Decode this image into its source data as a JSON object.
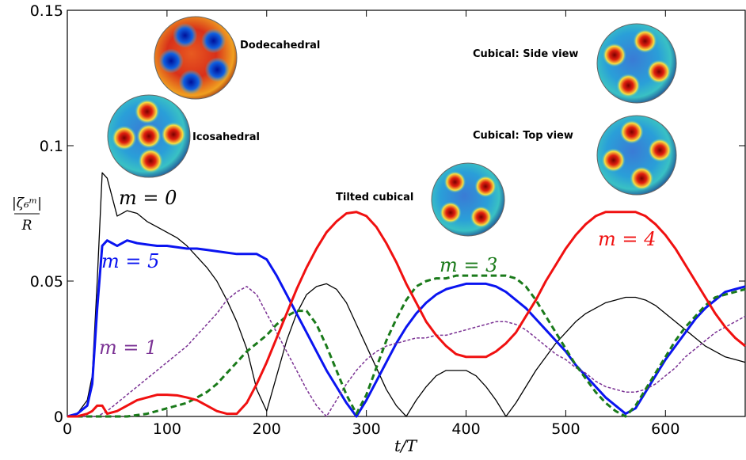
{
  "chart_data": {
    "type": "line",
    "xlabel": "t/T",
    "ylabel_numerator": "|ζ₆ᵐ|",
    "ylabel_denominator": "R",
    "xlim": [
      0,
      680
    ],
    "ylim": [
      0,
      0.15
    ],
    "xticks": [
      0,
      100,
      200,
      300,
      400,
      500,
      600
    ],
    "yticks": [
      0,
      0.05,
      0.1,
      0.15
    ],
    "annotations": [
      "Dodecahedral",
      "Icosahedral",
      "Tilted cubical",
      "Cubical: Side view",
      "Cubical: Top view"
    ],
    "x": [
      0,
      10,
      20,
      25,
      30,
      35,
      40,
      50,
      60,
      70,
      80,
      90,
      100,
      110,
      120,
      130,
      140,
      150,
      160,
      170,
      180,
      190,
      200,
      210,
      220,
      230,
      240,
      250,
      260,
      270,
      280,
      290,
      300,
      310,
      320,
      330,
      340,
      350,
      360,
      370,
      380,
      390,
      400,
      410,
      420,
      430,
      440,
      450,
      460,
      470,
      480,
      490,
      500,
      510,
      520,
      530,
      540,
      550,
      560,
      570,
      580,
      590,
      600,
      610,
      620,
      630,
      640,
      650,
      660,
      670,
      680
    ],
    "series": [
      {
        "name": "m = 0",
        "color": "#000000",
        "linewidth": 1.3,
        "dashed": false,
        "values": [
          0,
          0.001,
          0.006,
          0.015,
          0.05,
          0.09,
          0.088,
          0.074,
          0.076,
          0.075,
          0.072,
          0.07,
          0.068,
          0.066,
          0.063,
          0.059,
          0.055,
          0.05,
          0.043,
          0.035,
          0.025,
          0.01,
          0.002,
          0.015,
          0.028,
          0.038,
          0.045,
          0.048,
          0.049,
          0.047,
          0.042,
          0.034,
          0.026,
          0.018,
          0.01,
          0.004,
          0,
          0.006,
          0.011,
          0.015,
          0.017,
          0.017,
          0.017,
          0.015,
          0.011,
          0.006,
          0,
          0.005,
          0.011,
          0.017,
          0.022,
          0.027,
          0.031,
          0.035,
          0.038,
          0.04,
          0.042,
          0.043,
          0.044,
          0.044,
          0.043,
          0.041,
          0.038,
          0.035,
          0.032,
          0.029,
          0.026,
          0.024,
          0.022,
          0.021,
          0.02
        ]
      },
      {
        "name": "m = 5",
        "color": "#0a14f0",
        "linewidth": 3,
        "dashed": false,
        "values": [
          0,
          0.001,
          0.004,
          0.012,
          0.04,
          0.063,
          0.065,
          0.063,
          0.065,
          0.064,
          0.0635,
          0.063,
          0.063,
          0.0625,
          0.062,
          0.062,
          0.0615,
          0.061,
          0.0605,
          0.06,
          0.06,
          0.06,
          0.058,
          0.052,
          0.045,
          0.038,
          0.031,
          0.024,
          0.017,
          0.011,
          0.005,
          0,
          0.006,
          0.013,
          0.02,
          0.027,
          0.033,
          0.038,
          0.042,
          0.045,
          0.047,
          0.048,
          0.049,
          0.049,
          0.049,
          0.048,
          0.046,
          0.043,
          0.04,
          0.036,
          0.032,
          0.028,
          0.024,
          0.019,
          0.015,
          0.011,
          0.007,
          0.004,
          0.001,
          0.003,
          0.009,
          0.015,
          0.021,
          0.026,
          0.031,
          0.036,
          0.04,
          0.043,
          0.046,
          0.047,
          0.048
        ]
      },
      {
        "name": "m = 1",
        "color": "#7b3294",
        "linewidth": 1.5,
        "dashed": true,
        "values": [
          0,
          0,
          0,
          0,
          0,
          0.001,
          0.002,
          0.005,
          0.008,
          0.011,
          0.014,
          0.017,
          0.02,
          0.023,
          0.026,
          0.03,
          0.034,
          0.038,
          0.043,
          0.046,
          0.048,
          0.045,
          0.038,
          0.031,
          0.024,
          0.017,
          0.01,
          0.004,
          0,
          0.006,
          0.012,
          0.017,
          0.021,
          0.024,
          0.026,
          0.027,
          0.028,
          0.029,
          0.029,
          0.03,
          0.03,
          0.031,
          0.032,
          0.033,
          0.034,
          0.035,
          0.035,
          0.034,
          0.032,
          0.029,
          0.026,
          0.023,
          0.021,
          0.018,
          0.016,
          0.013,
          0.011,
          0.01,
          0.009,
          0.009,
          0.01,
          0.012,
          0.015,
          0.018,
          0.022,
          0.025,
          0.028,
          0.031,
          0.033,
          0.035,
          0.037
        ]
      },
      {
        "name": "m = 3",
        "color": "#1a7a1a",
        "linewidth": 3,
        "dashed": true,
        "values": [
          0,
          0,
          0,
          0,
          0,
          0,
          0,
          0,
          0,
          0.0005,
          0.001,
          0.002,
          0.003,
          0.004,
          0.005,
          0.007,
          0.009,
          0.012,
          0.016,
          0.02,
          0.024,
          0.027,
          0.03,
          0.034,
          0.037,
          0.039,
          0.039,
          0.034,
          0.026,
          0.017,
          0.008,
          0.001,
          0.008,
          0.018,
          0.028,
          0.036,
          0.043,
          0.048,
          0.05,
          0.051,
          0.051,
          0.052,
          0.052,
          0.052,
          0.052,
          0.052,
          0.052,
          0.051,
          0.048,
          0.043,
          0.037,
          0.031,
          0.025,
          0.019,
          0.014,
          0.009,
          0.005,
          0.002,
          0,
          0.004,
          0.01,
          0.016,
          0.022,
          0.028,
          0.033,
          0.037,
          0.041,
          0.044,
          0.045,
          0.046,
          0.047
        ]
      },
      {
        "name": "m = 4",
        "color": "#f01010",
        "linewidth": 3,
        "dashed": false,
        "values": [
          0,
          0,
          0.001,
          0.002,
          0.004,
          0.004,
          0.001,
          0.002,
          0.004,
          0.006,
          0.007,
          0.008,
          0.008,
          0.0078,
          0.007,
          0.006,
          0.004,
          0.002,
          0.001,
          0.001,
          0.005,
          0.012,
          0.02,
          0.029,
          0.038,
          0.047,
          0.055,
          0.062,
          0.068,
          0.072,
          0.075,
          0.0755,
          0.074,
          0.07,
          0.064,
          0.057,
          0.049,
          0.042,
          0.035,
          0.03,
          0.026,
          0.023,
          0.022,
          0.022,
          0.022,
          0.024,
          0.027,
          0.031,
          0.037,
          0.043,
          0.05,
          0.056,
          0.062,
          0.067,
          0.071,
          0.074,
          0.0755,
          0.0755,
          0.0755,
          0.0755,
          0.074,
          0.071,
          0.067,
          0.062,
          0.056,
          0.05,
          0.044,
          0.038,
          0.033,
          0.029,
          0.026
        ]
      }
    ]
  }
}
